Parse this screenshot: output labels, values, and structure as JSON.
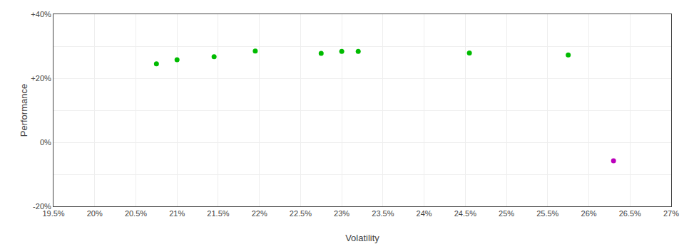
{
  "chart_data": {
    "type": "scatter",
    "xlabel": "Volatility",
    "ylabel": "Performance",
    "series": [
      {
        "color": "#00bb00",
        "x": [
          0.2075,
          0.21,
          0.2145,
          0.2195,
          0.2275,
          0.23,
          0.232,
          0.2455,
          0.2575
        ],
        "values": [
          0.245,
          0.258,
          0.267,
          0.285,
          0.278,
          0.284,
          0.284,
          0.279,
          0.273
        ]
      },
      {
        "color": "#bb00bb",
        "x": [
          0.263
        ],
        "values": [
          -0.058
        ]
      }
    ],
    "xlim": [
      0.195,
      0.27
    ],
    "ylim": [
      -0.2,
      0.4
    ],
    "xticks": [
      {
        "value": 0.195,
        "label": "19.5%"
      },
      {
        "value": 0.2,
        "label": "20%"
      },
      {
        "value": 0.205,
        "label": "20.5%"
      },
      {
        "value": 0.21,
        "label": "21%"
      },
      {
        "value": 0.215,
        "label": "21.5%"
      },
      {
        "value": 0.22,
        "label": "22%"
      },
      {
        "value": 0.225,
        "label": "22.5%"
      },
      {
        "value": 0.23,
        "label": "23%"
      },
      {
        "value": 0.235,
        "label": "23.5%"
      },
      {
        "value": 0.24,
        "label": "24%"
      },
      {
        "value": 0.245,
        "label": "24.5%"
      },
      {
        "value": 0.25,
        "label": "25%"
      },
      {
        "value": 0.255,
        "label": "25.5%"
      },
      {
        "value": 0.26,
        "label": "26%"
      },
      {
        "value": 0.265,
        "label": "26.5%"
      },
      {
        "value": 0.27,
        "label": "27%"
      }
    ],
    "yticks": [
      {
        "value": -0.2,
        "label": "-20%"
      },
      {
        "value": -0.1,
        "label": null
      },
      {
        "value": 0.0,
        "label": "0%"
      },
      {
        "value": 0.1,
        "label": null
      },
      {
        "value": 0.2,
        "label": "+20%"
      },
      {
        "value": 0.3,
        "label": null
      },
      {
        "value": 0.4,
        "label": "+40%"
      }
    ],
    "grid": true
  }
}
